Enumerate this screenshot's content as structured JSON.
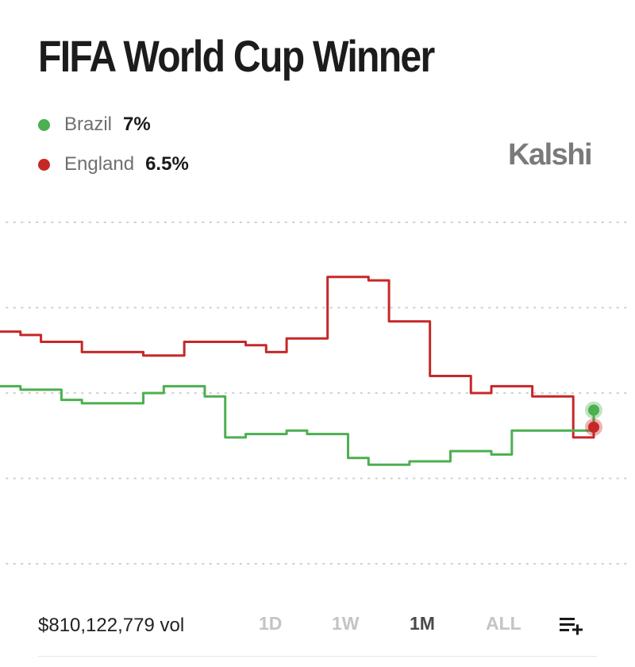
{
  "title": "FIFA World Cup Winner",
  "brand": "Kalshi",
  "legend": [
    {
      "name": "Brazil",
      "value": "7%",
      "color": "#4caf50"
    },
    {
      "name": "England",
      "value": "6.5%",
      "color": "#c62828"
    }
  ],
  "footer": {
    "volume": "$810,122,779 vol",
    "ranges": [
      "1D",
      "1W",
      "1M",
      "ALL"
    ],
    "active_range": "1M",
    "add_icon": "playlist-add-icon"
  },
  "chart_data": {
    "type": "line",
    "title": "FIFA World Cup Winner",
    "grid": true,
    "legend_position": "top-left",
    "ylim": [
      2.5,
      12.5
    ],
    "series": [
      {
        "name": "England",
        "color": "#c62828",
        "x": [
          0,
          1,
          2,
          3,
          4,
          5,
          6,
          7,
          8,
          9,
          10,
          11,
          12,
          13,
          14,
          15,
          16,
          17,
          18,
          19,
          20,
          21,
          22,
          23,
          24,
          25,
          26,
          27,
          28,
          29
        ],
        "values": [
          9.3,
          9.2,
          9.0,
          9.0,
          8.7,
          8.7,
          8.7,
          8.6,
          8.6,
          9.0,
          9.0,
          9.0,
          8.9,
          8.7,
          9.1,
          9.1,
          10.9,
          10.9,
          10.8,
          9.6,
          9.6,
          8.0,
          8.0,
          7.5,
          7.7,
          7.7,
          7.4,
          7.4,
          6.2,
          6.5
        ]
      },
      {
        "name": "Brazil",
        "color": "#4caf50",
        "x": [
          0,
          1,
          2,
          3,
          4,
          5,
          6,
          7,
          8,
          9,
          10,
          11,
          12,
          13,
          14,
          15,
          16,
          17,
          18,
          19,
          20,
          21,
          22,
          23,
          24,
          25,
          26,
          27,
          28,
          29
        ],
        "values": [
          7.7,
          7.6,
          7.6,
          7.3,
          7.2,
          7.2,
          7.2,
          7.5,
          7.7,
          7.7,
          7.4,
          6.2,
          6.3,
          6.3,
          6.4,
          6.3,
          6.3,
          5.6,
          5.4,
          5.4,
          5.5,
          5.5,
          5.8,
          5.8,
          5.7,
          6.4,
          6.4,
          6.4,
          6.4,
          7.0
        ]
      }
    ]
  }
}
